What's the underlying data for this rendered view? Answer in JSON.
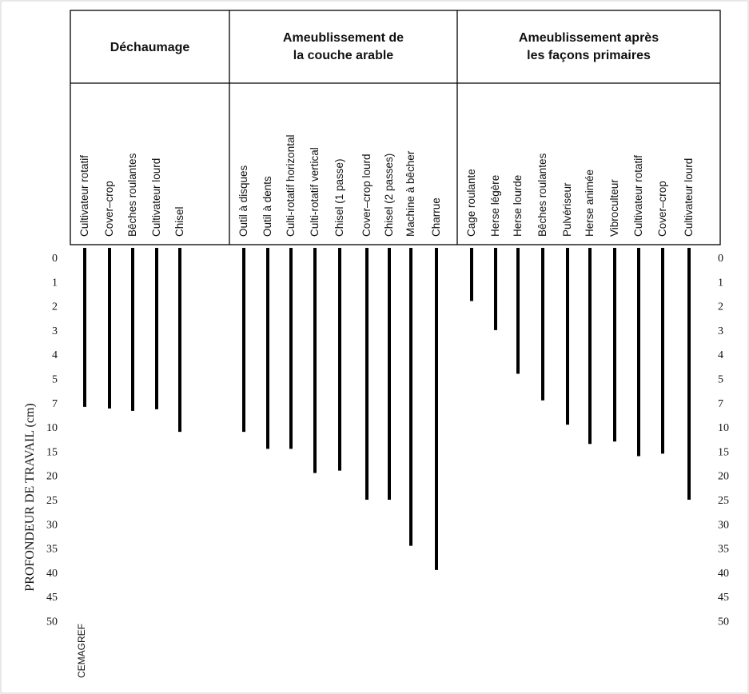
{
  "chart_data": {
    "type": "bar",
    "ylabel": "PROFONDEUR DE TRAVAIL (cm)",
    "credit": "CEMAGREF",
    "yticks": [
      "0",
      "1",
      "2",
      "3",
      "4",
      "5",
      "7",
      "10",
      "15",
      "20",
      "25",
      "30",
      "35",
      "40",
      "45",
      "50"
    ],
    "groups": [
      {
        "title": [
          "Déchaumage"
        ],
        "categories": [
          "Cultivateur rotatif",
          "Cover–crop",
          "Bêches roulantes",
          "Cultivateur lourd",
          "Chisel"
        ],
        "values": [
          7.5,
          7.7,
          8,
          7.8,
          11
        ]
      },
      {
        "title": [
          "Ameublissement de",
          "la couche arable"
        ],
        "categories": [
          "Outil à disques",
          "Outil à dents",
          "Culti-rotatif horizontal",
          "Culti-rotatif vertical",
          "Chisel (1 passe)",
          "Cover–crop lourd",
          "Chisel (2 passes)",
          "Machine à bêcher",
          "Charrue"
        ],
        "values": [
          11,
          14.5,
          14.5,
          19.5,
          19,
          25,
          25,
          34.5,
          39.5
        ]
      },
      {
        "title": [
          "Ameublissement après",
          "les façons primaires"
        ],
        "categories": [
          "Cage roulante",
          "Herse légère",
          "Herse lourde",
          "Bêches roulantes",
          "Pulvériseur",
          "Herse animée",
          "Vibroculteur",
          "Cultivateur rotatif",
          "Cover–crop",
          "Cultivateur lourd"
        ],
        "values": [
          1.8,
          3,
          4.8,
          6.8,
          9.7,
          13.5,
          13,
          16,
          15.5,
          25
        ]
      }
    ]
  }
}
